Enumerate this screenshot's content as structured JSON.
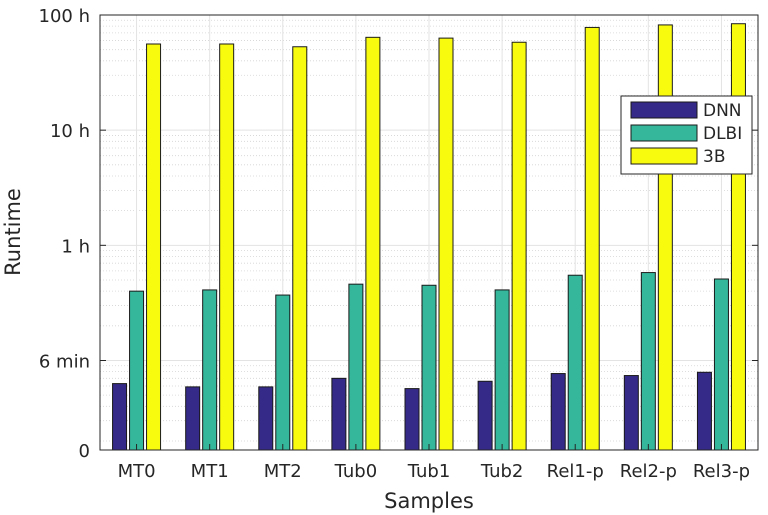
{
  "chart_data": {
    "type": "bar",
    "xlabel": "Samples",
    "ylabel": "Runtime",
    "y_scale": "log",
    "y_unit": "hours",
    "ylim": [
      0.0167,
      100
    ],
    "y_ticks": [
      {
        "value": 0.0167,
        "label": "0"
      },
      {
        "value": 0.1,
        "label": "6 min"
      },
      {
        "value": 1,
        "label": "1 h"
      },
      {
        "value": 10,
        "label": "10 h"
      },
      {
        "value": 100,
        "label": "100 h"
      }
    ],
    "grid": true,
    "legend_position": "top-right",
    "categories": [
      "MT0",
      "MT1",
      "MT2",
      "Tub0",
      "Tub1",
      "Tub2",
      "Rel1-p",
      "Rel2-p",
      "Rel3-p"
    ],
    "series": [
      {
        "name": "DNN",
        "color": "#352a87",
        "values": [
          0.063,
          0.059,
          0.059,
          0.07,
          0.057,
          0.066,
          0.077,
          0.074,
          0.079
        ]
      },
      {
        "name": "DLBI",
        "color": "#35b79b",
        "values": [
          0.4,
          0.41,
          0.37,
          0.46,
          0.45,
          0.41,
          0.55,
          0.58,
          0.51
        ]
      },
      {
        "name": "3B",
        "color": "#f9fb0e",
        "values": [
          56,
          56,
          53,
          64,
          63,
          58,
          78,
          82,
          84
        ]
      }
    ]
  }
}
